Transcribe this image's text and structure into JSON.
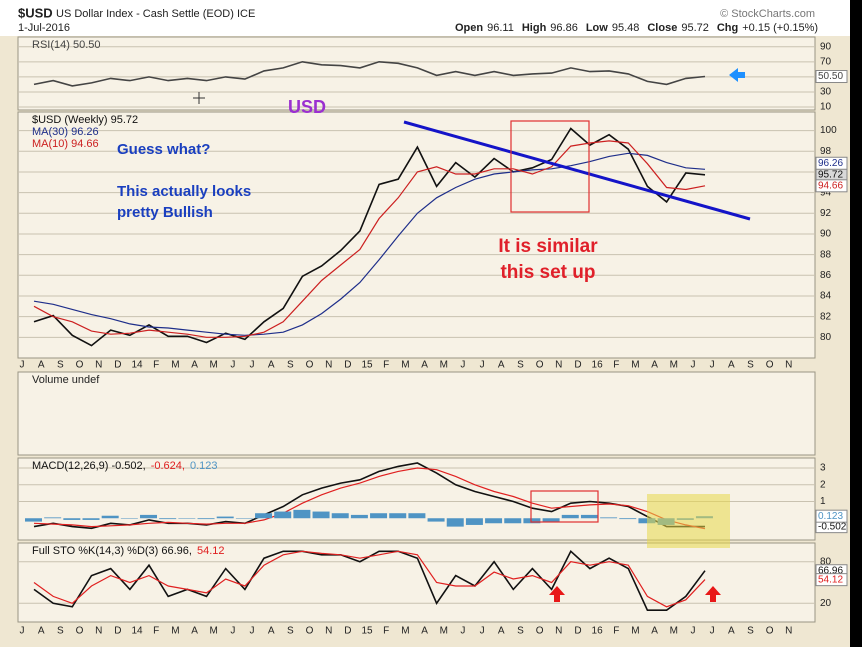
{
  "header": {
    "symbol": "$USD",
    "name": "US Dollar Index - Cash Settle (EOD) ICE",
    "date": "1-Jul-2016",
    "copyright": "© StockCharts.com",
    "quote": [
      {
        "label": "Open",
        "value": 96.11
      },
      {
        "label": "High",
        "value": 96.86
      },
      {
        "label": "Low",
        "value": 95.48
      },
      {
        "label": "Close",
        "value": 95.72
      },
      {
        "label": "Chg",
        "value": "+0.15 (+0.15%)"
      }
    ]
  },
  "chart_data": [
    {
      "type": "line",
      "ylim": [
        6,
        103
      ],
      "yticks": [
        10,
        30,
        50,
        70,
        90
      ],
      "grid": true,
      "series": [
        {
          "name": "RSI(14) 50.50",
          "color": "#444444",
          "tag": true,
          "values": [
            40,
            45,
            38,
            42,
            48,
            45,
            50,
            45,
            48,
            45,
            50,
            47,
            58,
            62,
            70,
            66,
            65,
            62,
            70,
            68,
            62,
            52,
            57,
            52,
            57,
            52,
            54,
            55,
            62,
            57,
            58,
            54,
            44,
            40,
            48,
            50.5,
            null,
            null,
            null,
            null,
            null
          ],
          "value_labels": [
            null,
            null,
            null,
            null,
            null,
            null,
            null,
            null,
            null,
            null,
            null,
            null,
            null,
            null,
            null,
            null,
            null,
            null,
            null,
            null,
            null,
            null,
            null,
            null,
            null,
            null,
            null,
            null,
            null,
            null,
            null,
            null,
            null,
            null,
            null,
            "50.50",
            null,
            null,
            null,
            null,
            null
          ]
        }
      ]
    },
    {
      "type": "line",
      "ylim": [
        78,
        101.8
      ],
      "yticks": [
        80,
        82,
        84,
        86,
        88,
        90,
        92,
        94,
        96,
        98,
        100
      ],
      "grid": true,
      "categories": [
        "J",
        "A",
        "S",
        "O",
        "N",
        "D",
        "14",
        "F",
        "M",
        "A",
        "M",
        "J",
        "J",
        "A",
        "S",
        "O",
        "N",
        "D",
        "15",
        "F",
        "M",
        "A",
        "M",
        "J",
        "J",
        "A",
        "S",
        "O",
        "N",
        "D",
        "16",
        "F",
        "M",
        "A",
        "M",
        "J",
        "J",
        "A",
        "S",
        "O",
        "N"
      ],
      "series": [
        {
          "name": "$USD (Weekly) 95.72",
          "color": "#111111",
          "tag": true,
          "values": [
            81.5,
            82.1,
            80.2,
            79.2,
            80.7,
            80.2,
            81.2,
            80.1,
            80.1,
            79.5,
            80.4,
            79.8,
            81.5,
            82.8,
            85.9,
            86.9,
            88.4,
            90.3,
            94.8,
            95.3,
            98.4,
            94.6,
            96.9,
            95.5,
            97.3,
            96.0,
            96.4,
            97.2,
            100.2,
            98.6,
            99.6,
            98.2,
            94.6,
            93.1,
            95.9,
            95.72,
            null,
            null,
            null,
            null,
            null
          ]
        },
        {
          "name": "MA(30) 96.26",
          "color": "#1e2e8a",
          "tag": true,
          "values": [
            83.5,
            83.2,
            82.7,
            82.2,
            81.8,
            81.3,
            81.0,
            80.9,
            80.7,
            80.5,
            80.3,
            80.2,
            80.3,
            80.5,
            81.2,
            82.3,
            83.7,
            85.3,
            87.5,
            89.8,
            92.0,
            93.5,
            94.5,
            95.3,
            95.8,
            96.0,
            96.2,
            96.3,
            96.6,
            97.0,
            97.5,
            97.8,
            97.6,
            96.9,
            96.4,
            96.26,
            null,
            null,
            null,
            null,
            null
          ]
        },
        {
          "name": "MA(10) 94.66",
          "color": "#cc2020",
          "tag": true,
          "values": [
            83.0,
            82.0,
            81.5,
            80.6,
            80.3,
            80.4,
            80.7,
            80.5,
            80.3,
            80.0,
            80.0,
            80.1,
            80.5,
            81.5,
            83.5,
            85.5,
            87.0,
            88.5,
            91.5,
            93.5,
            96.0,
            96.5,
            95.8,
            95.8,
            96.3,
            96.3,
            95.8,
            96.5,
            98.5,
            98.8,
            99.0,
            98.8,
            96.8,
            94.5,
            94.3,
            94.66,
            null,
            null,
            null,
            null,
            null
          ]
        }
      ],
      "annotations": [
        {
          "text": "USD",
          "color": "#9b30d0"
        },
        {
          "text": "Guess what?",
          "color": "#1a3fbf"
        },
        {
          "text": "This actually looks",
          "color": "#1a3fbf"
        },
        {
          "text": "pretty Bullish",
          "color": "#1a3fbf"
        },
        {
          "text": "It is similar",
          "color": "#e0202a"
        },
        {
          "text": "this set up",
          "color": "#e0202a"
        }
      ]
    },
    {
      "type": "bar",
      "title": "Volume undef"
    },
    {
      "type": "line",
      "ylim": [
        -1.3,
        3.6
      ],
      "yticks": [
        1,
        2,
        3
      ],
      "grid": true,
      "series": [
        {
          "name": "MACD(12,26,9) -0.502,",
          "color": "#111111",
          "tag": true,
          "values": [
            -0.5,
            -0.3,
            -0.5,
            -0.6,
            -0.3,
            -0.4,
            -0.1,
            -0.3,
            -0.3,
            -0.4,
            -0.2,
            -0.3,
            0.2,
            0.7,
            1.4,
            1.8,
            2.1,
            2.3,
            2.8,
            3.1,
            3.3,
            2.7,
            2.0,
            1.6,
            1.3,
            1.0,
            0.6,
            0.4,
            0.9,
            1.0,
            0.9,
            0.7,
            0.1,
            -0.5,
            -0.5,
            -0.502,
            null,
            null,
            null,
            null,
            null
          ]
        },
        {
          "name": "-0.624,",
          "color": "#e02020",
          "values": [
            -0.3,
            -0.35,
            -0.4,
            -0.5,
            -0.45,
            -0.4,
            -0.3,
            -0.25,
            -0.3,
            -0.35,
            -0.3,
            -0.3,
            -0.1,
            0.3,
            0.9,
            1.4,
            1.8,
            2.1,
            2.5,
            2.8,
            3.0,
            2.9,
            2.5,
            2.0,
            1.6,
            1.3,
            0.9,
            0.6,
            0.7,
            0.8,
            0.85,
            0.75,
            0.4,
            -0.1,
            -0.4,
            -0.624,
            null,
            null,
            null,
            null,
            null
          ]
        },
        {
          "name": "0.123",
          "type": "bar",
          "color": "#4f94c4",
          "tag": true,
          "values": [
            -0.2,
            0.05,
            -0.1,
            -0.1,
            0.15,
            0,
            0.2,
            -0.05,
            0,
            -0.05,
            0.1,
            0,
            0.3,
            0.4,
            0.5,
            0.4,
            0.3,
            0.2,
            0.3,
            0.3,
            0.3,
            -0.2,
            -0.5,
            -0.4,
            -0.3,
            -0.3,
            -0.3,
            -0.2,
            0.2,
            0.2,
            0.05,
            -0.05,
            -0.3,
            -0.4,
            -0.1,
            0.123,
            null,
            null,
            null,
            null,
            null
          ]
        }
      ]
    },
    {
      "type": "line",
      "ylim": [
        -7,
        107
      ],
      "yticks": [
        20,
        80
      ],
      "grid": true,
      "categories": [
        "J",
        "A",
        "S",
        "O",
        "N",
        "D",
        "14",
        "F",
        "M",
        "A",
        "M",
        "J",
        "J",
        "A",
        "S",
        "O",
        "N",
        "D",
        "15",
        "F",
        "M",
        "A",
        "M",
        "J",
        "J",
        "A",
        "S",
        "O",
        "N",
        "D",
        "16",
        "F",
        "M",
        "A",
        "M",
        "J",
        "J",
        "A",
        "S",
        "O",
        "N"
      ],
      "series": [
        {
          "name": "Full STO %K(14,3) %D(3) 66.96,",
          "color": "#111111",
          "tag": true,
          "values": [
            40,
            20,
            15,
            60,
            70,
            40,
            75,
            30,
            40,
            30,
            70,
            40,
            85,
            95,
            95,
            90,
            90,
            80,
            95,
            95,
            85,
            20,
            60,
            45,
            80,
            40,
            70,
            40,
            95,
            70,
            85,
            70,
            10,
            10,
            30,
            66.96,
            null,
            null,
            null,
            null,
            null
          ]
        },
        {
          "name": "54.12",
          "color": "#e02020",
          "tag": true,
          "values": [
            50,
            30,
            20,
            45,
            60,
            50,
            60,
            45,
            40,
            35,
            55,
            45,
            75,
            90,
            95,
            92,
            90,
            85,
            90,
            95,
            90,
            50,
            45,
            45,
            65,
            55,
            60,
            50,
            80,
            75,
            80,
            75,
            30,
            15,
            25,
            54.12,
            null,
            null,
            null,
            null,
            null
          ]
        }
      ]
    }
  ]
}
